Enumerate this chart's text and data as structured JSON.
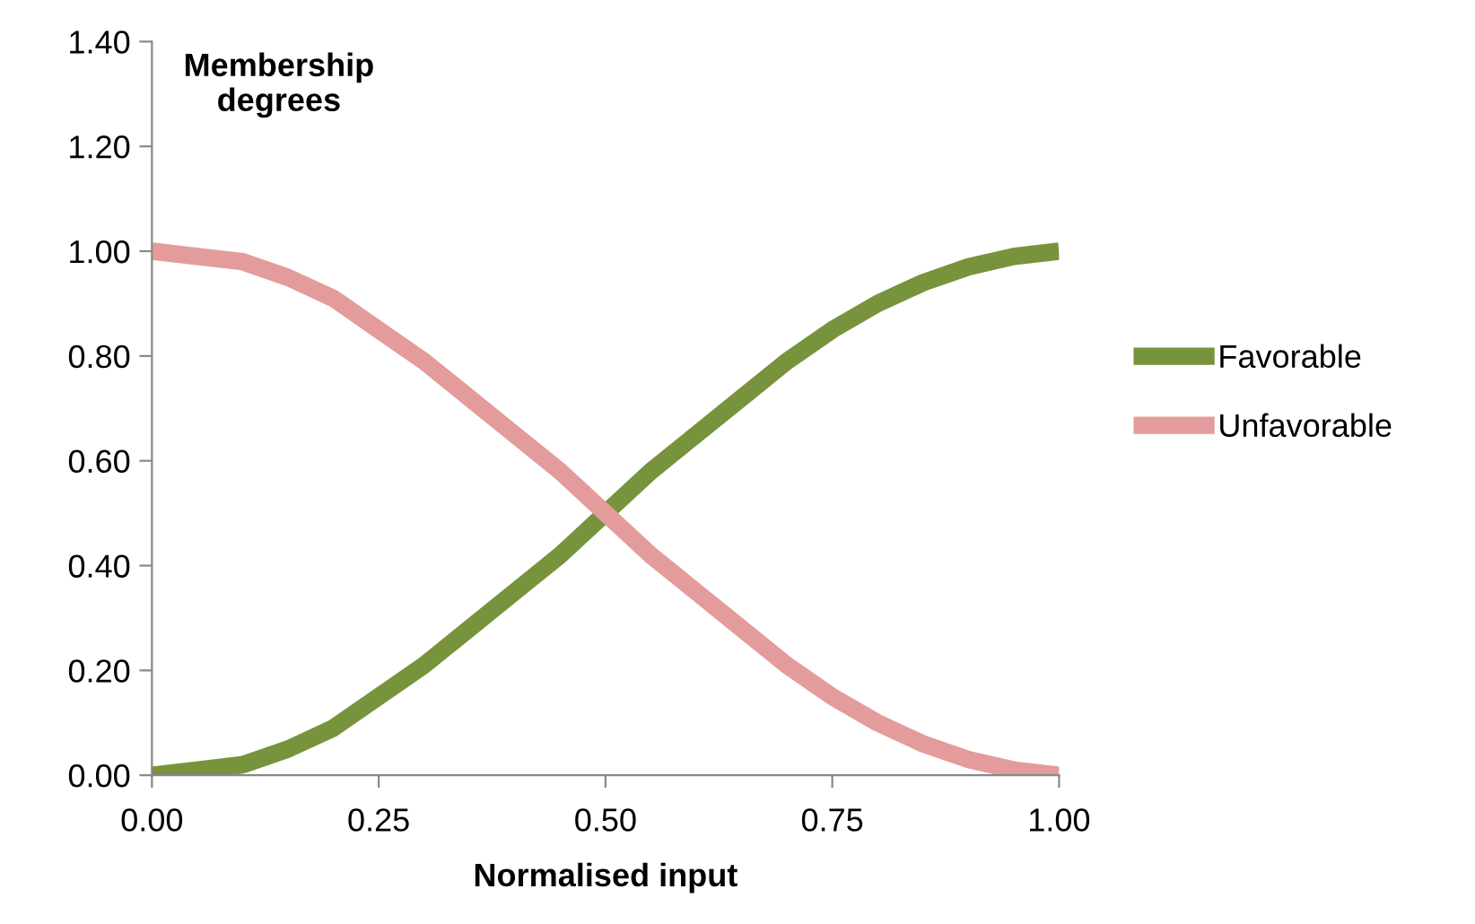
{
  "chart_data": {
    "type": "line",
    "ylabel": "Membership degrees",
    "xlabel": "Normalised input",
    "x": [
      0,
      0.05,
      0.1,
      0.15,
      0.2,
      0.25,
      0.3,
      0.35,
      0.4,
      0.45,
      0.5,
      0.55,
      0.6,
      0.65,
      0.7,
      0.75,
      0.8,
      0.85,
      0.9,
      0.95,
      1
    ],
    "series": [
      {
        "name": "Favorable",
        "color": "#77933c",
        "values": [
          0,
          0.01,
          0.02,
          0.05,
          0.09,
          0.15,
          0.21,
          0.28,
          0.35,
          0.42,
          0.5,
          0.58,
          0.65,
          0.72,
          0.79,
          0.85,
          0.9,
          0.94,
          0.97,
          0.99,
          1
        ]
      },
      {
        "name": "Unfavorable",
        "color": "#e39c9b",
        "values": [
          1,
          0.99,
          0.98,
          0.95,
          0.91,
          0.85,
          0.79,
          0.72,
          0.65,
          0.58,
          0.5,
          0.42,
          0.35,
          0.28,
          0.21,
          0.15,
          0.1,
          0.06,
          0.03,
          0.01,
          0
        ]
      }
    ],
    "xlim": [
      0,
      1
    ],
    "ylim": [
      0,
      1.4
    ],
    "xticks": [
      {
        "value": 0,
        "label": "0.00"
      },
      {
        "value": 0.25,
        "label": "0.25"
      },
      {
        "value": 0.5,
        "label": "0.50"
      },
      {
        "value": 0.75,
        "label": "0.75"
      },
      {
        "value": 1,
        "label": "1.00"
      }
    ],
    "yticks": [
      {
        "value": 0,
        "label": "0.00"
      },
      {
        "value": 0.2,
        "label": "0.20"
      },
      {
        "value": 0.4,
        "label": "0.40"
      },
      {
        "value": 0.6,
        "label": "0.60"
      },
      {
        "value": 0.8,
        "label": "0.80"
      },
      {
        "value": 1,
        "label": "1.00"
      },
      {
        "value": 1.2,
        "label": "1.20"
      },
      {
        "value": 1.4,
        "label": "1.40"
      }
    ],
    "grid": false,
    "legend": "right",
    "marker": "none",
    "line_style": "solid"
  }
}
